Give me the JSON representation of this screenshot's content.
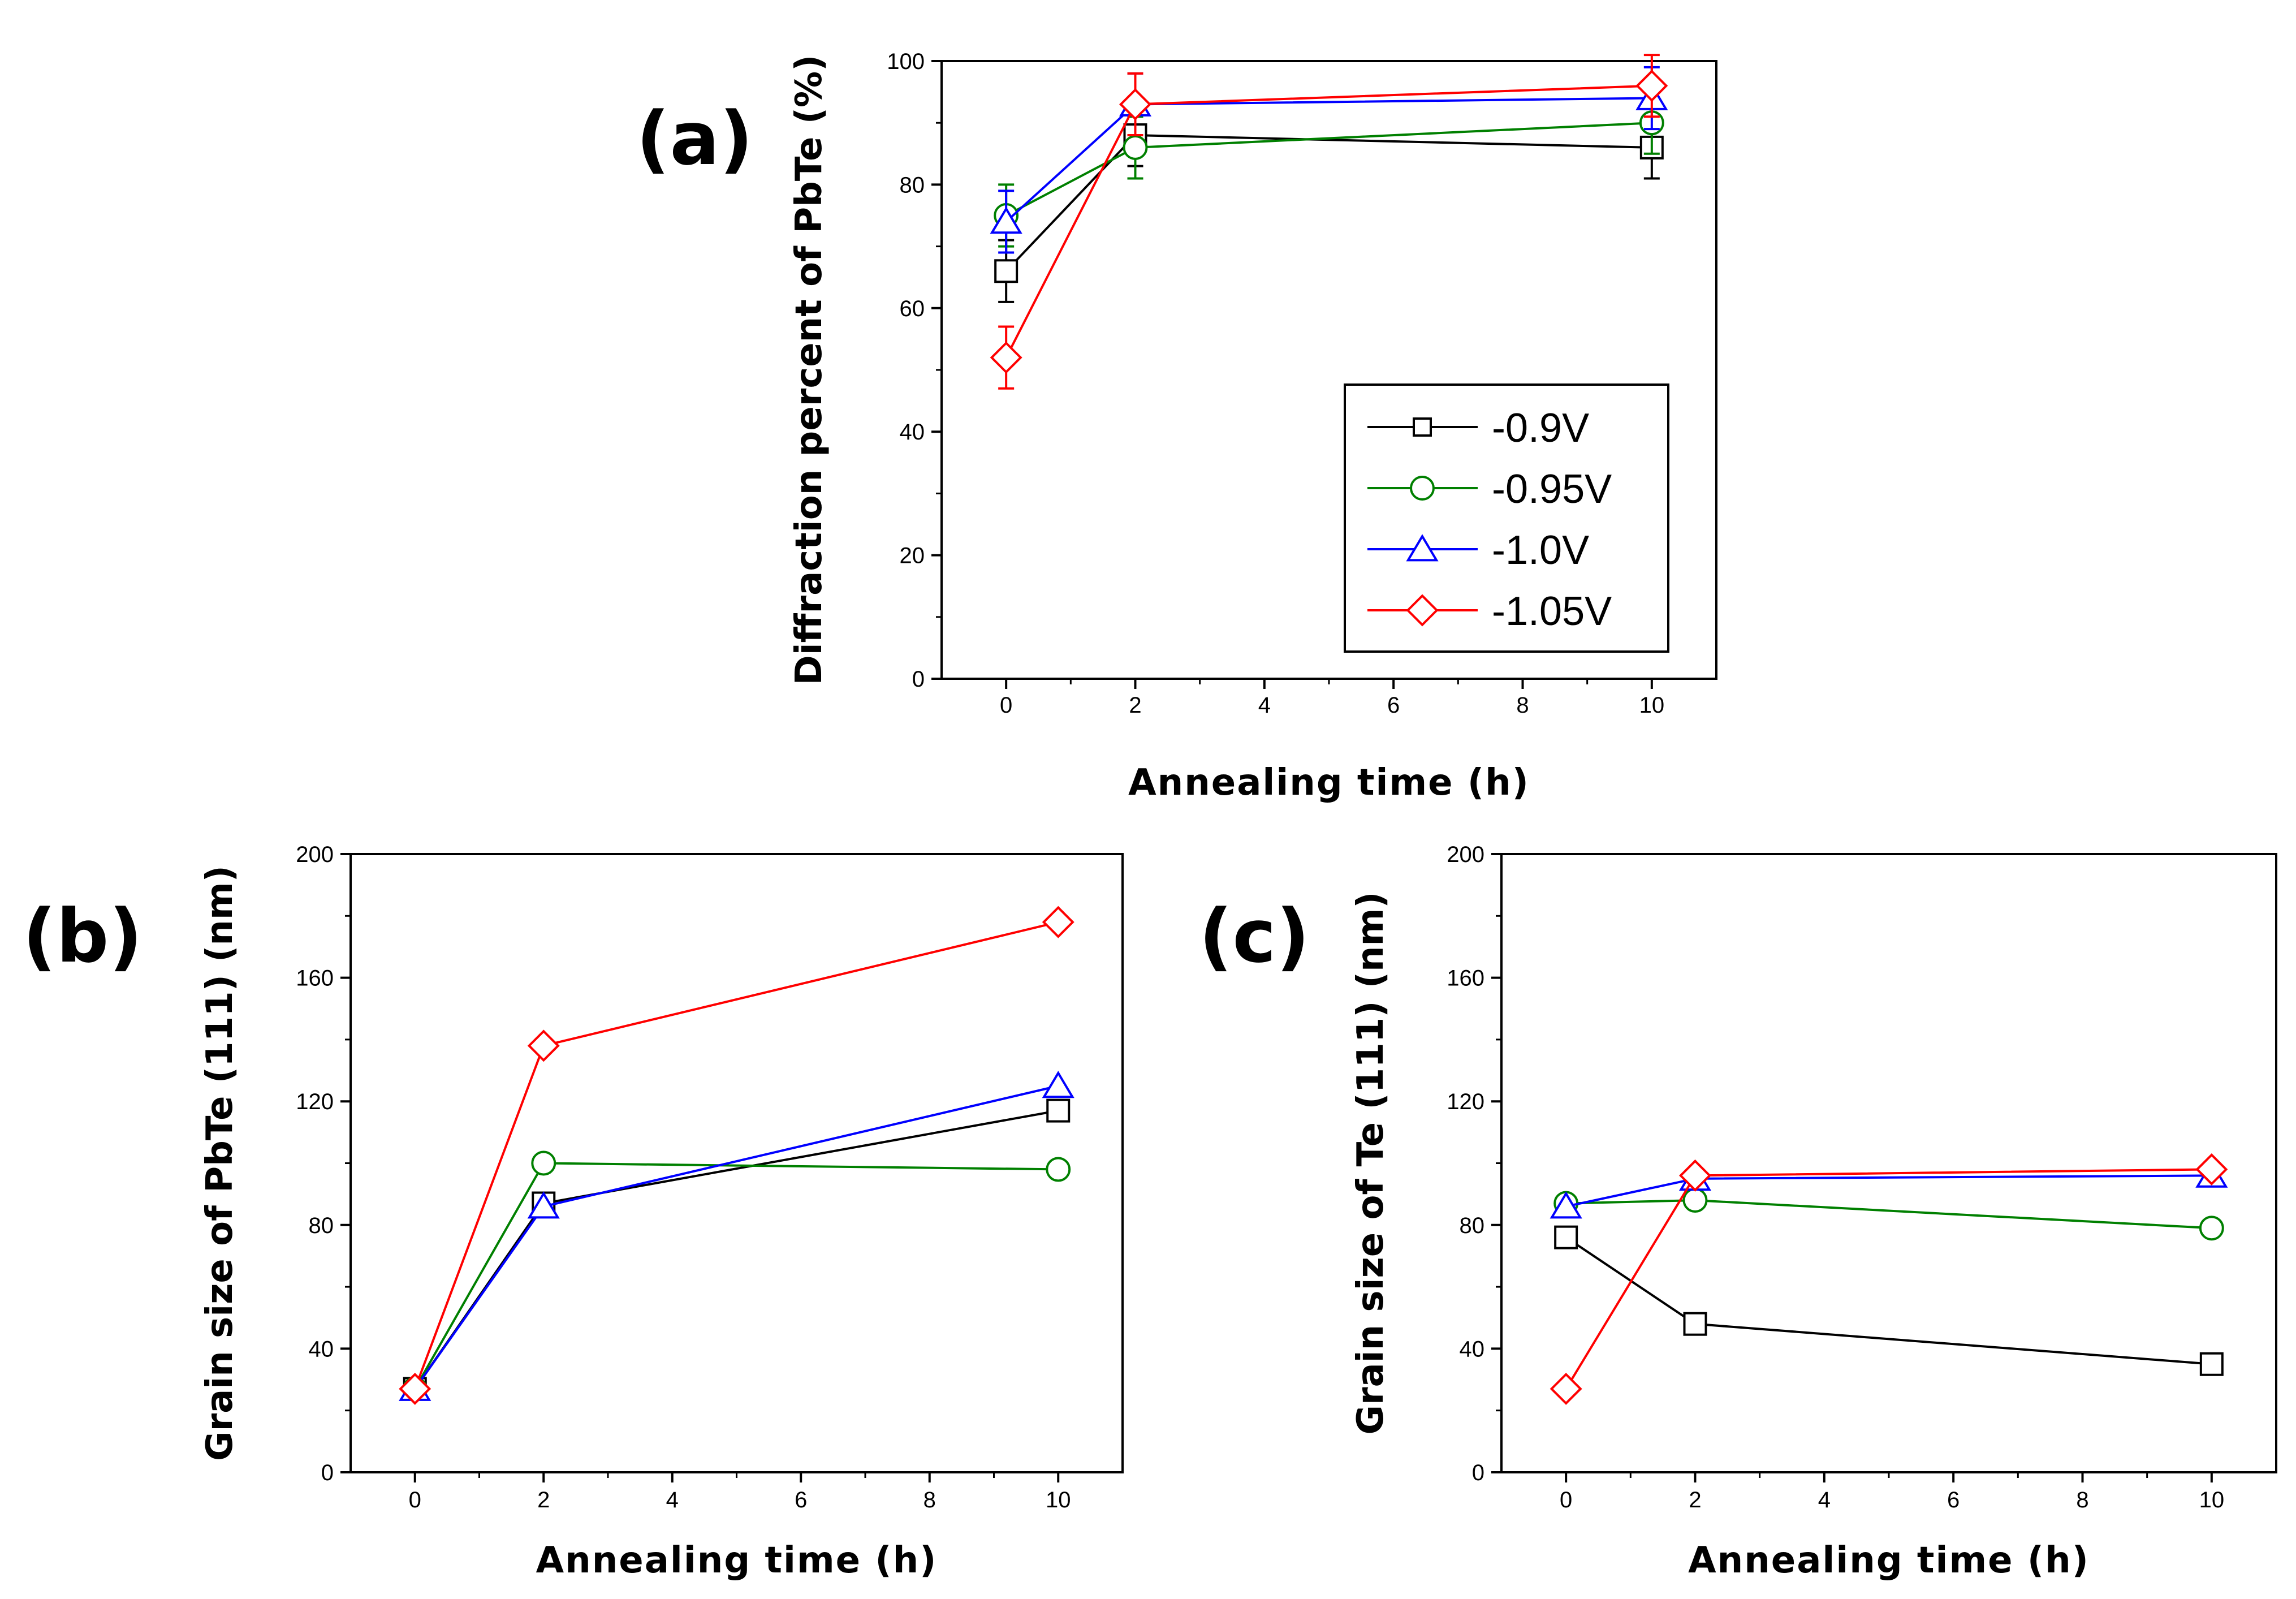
{
  "chart_data": [
    {
      "type": "line",
      "panel_label": "(a)",
      "xlabel": "Annealing time (h)",
      "ylabel": "Diffraction percent of PbTe (%)",
      "x_ticks": [
        "0",
        "2",
        "4",
        "6",
        "8",
        "10"
      ],
      "y_ticks": [
        "0",
        "20",
        "40",
        "60",
        "80",
        "100"
      ],
      "ylim": [
        0,
        100
      ],
      "grid": false,
      "legend_position": "lower-right",
      "series": [
        {
          "name": "-0.9V",
          "color": "#000000",
          "marker": "square",
          "x": [
            0,
            2,
            10
          ],
          "y": [
            66,
            88,
            86
          ],
          "err": [
            5,
            5,
            5
          ]
        },
        {
          "name": "-0.95V",
          "color": "#008000",
          "marker": "circle",
          "x": [
            0,
            2,
            10
          ],
          "y": [
            75,
            86,
            90
          ],
          "err": [
            5,
            5,
            5
          ]
        },
        {
          "name": "-1.0V",
          "color": "#0000ff",
          "marker": "triangle",
          "x": [
            0,
            2,
            10
          ],
          "y": [
            74,
            93,
            94
          ],
          "err": [
            5,
            5,
            5
          ]
        },
        {
          "name": "-1.05V",
          "color": "#ff0000",
          "marker": "diamond",
          "x": [
            0,
            2,
            10
          ],
          "y": [
            52,
            93,
            96
          ],
          "err": [
            5,
            5,
            5
          ]
        }
      ]
    },
    {
      "type": "line",
      "panel_label": "(b)",
      "xlabel": "Annealing time (h)",
      "ylabel": "Grain size of PbTe (111) (nm)",
      "x_ticks": [
        "0",
        "2",
        "4",
        "6",
        "8",
        "10"
      ],
      "y_ticks": [
        "0",
        "40",
        "80",
        "120",
        "160",
        "200"
      ],
      "ylim": [
        0,
        200
      ],
      "grid": false,
      "series": [
        {
          "color": "#000000",
          "marker": "square",
          "x": [
            0,
            2,
            10
          ],
          "y": [
            27,
            87,
            117
          ]
        },
        {
          "color": "#008000",
          "marker": "circle",
          "x": [
            0,
            2,
            10
          ],
          "y": [
            27,
            100,
            98
          ]
        },
        {
          "color": "#0000ff",
          "marker": "triangle",
          "x": [
            0,
            2,
            10
          ],
          "y": [
            27,
            86,
            125
          ]
        },
        {
          "color": "#ff0000",
          "marker": "diamond",
          "x": [
            0,
            2,
            10
          ],
          "y": [
            27,
            138,
            178
          ]
        }
      ]
    },
    {
      "type": "line",
      "panel_label": "(c)",
      "xlabel": "Annealing time (h)",
      "ylabel": "Grain size of Te (111) (nm)",
      "x_ticks": [
        "0",
        "2",
        "4",
        "6",
        "8",
        "10"
      ],
      "y_ticks": [
        "0",
        "40",
        "80",
        "120",
        "160",
        "200"
      ],
      "ylim": [
        0,
        200
      ],
      "grid": false,
      "series": [
        {
          "color": "#000000",
          "marker": "square",
          "x": [
            0,
            2,
            10
          ],
          "y": [
            76,
            48,
            35
          ]
        },
        {
          "color": "#008000",
          "marker": "circle",
          "x": [
            0,
            2,
            10
          ],
          "y": [
            87,
            88,
            79
          ]
        },
        {
          "color": "#0000ff",
          "marker": "triangle",
          "x": [
            0,
            2,
            10
          ],
          "y": [
            86,
            95,
            96
          ]
        },
        {
          "color": "#ff0000",
          "marker": "diamond",
          "x": [
            0,
            2,
            10
          ],
          "y": [
            27,
            96,
            98
          ]
        }
      ]
    }
  ]
}
